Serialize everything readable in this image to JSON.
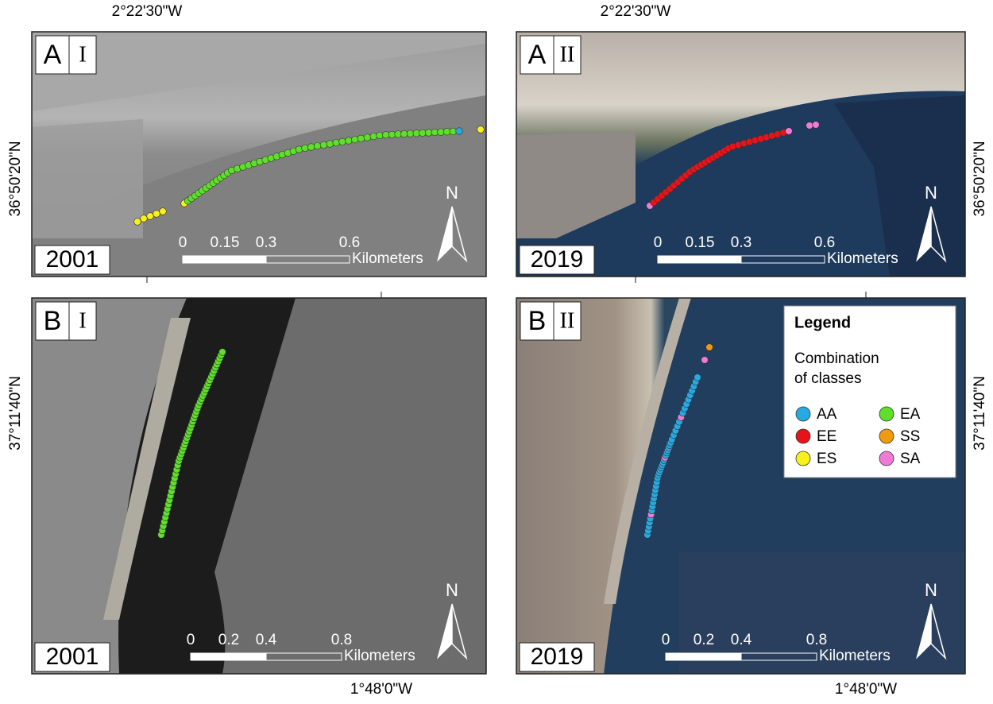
{
  "panels": [
    {
      "letter": "A",
      "numeral": "I",
      "year": "2001",
      "top_label": "2°22'30\"W",
      "side_label": "36°50'20\"N",
      "scale": {
        "labels": [
          "0",
          "0.15",
          "0.3",
          "0.6"
        ],
        "unit": "Kilometers"
      },
      "north": "N"
    },
    {
      "letter": "A",
      "numeral": "II",
      "year": "2019",
      "top_label": "2°22'30\"W",
      "side_label": "36°50'20\"N",
      "scale": {
        "labels": [
          "0",
          "0.15",
          "0.3",
          "0.6"
        ],
        "unit": "Kilometers"
      },
      "north": "N"
    },
    {
      "letter": "B",
      "numeral": "I",
      "year": "2001",
      "bottom_label": "1°48'0\"W",
      "side_label": "37°11'40\"N",
      "scale": {
        "labels": [
          "0",
          "0.2",
          "0.4",
          "0.8"
        ],
        "unit": "Kilometers"
      },
      "north": "N"
    },
    {
      "letter": "B",
      "numeral": "II",
      "year": "2019",
      "bottom_label": "1°48'0\"W",
      "side_label": "37°11'40\"N",
      "scale": {
        "labels": [
          "0",
          "0.2",
          "0.4",
          "0.8"
        ],
        "unit": "Kilometers"
      },
      "north": "N"
    }
  ],
  "legend": {
    "title": "Legend",
    "subtitle": [
      "Combination",
      "of classes"
    ],
    "items": [
      {
        "name": "AA",
        "color": "#27a9e1"
      },
      {
        "name": "EA",
        "color": "#5ee02a"
      },
      {
        "name": "EE",
        "color": "#e8121a"
      },
      {
        "name": "SS",
        "color": "#f09a0c"
      },
      {
        "name": "ES",
        "color": "#f7f01a"
      },
      {
        "name": "SA",
        "color": "#f07ad6"
      }
    ]
  }
}
